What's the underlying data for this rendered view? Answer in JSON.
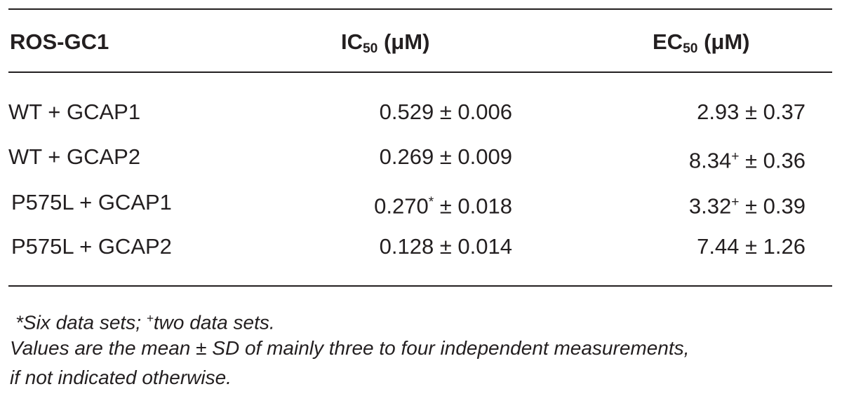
{
  "table": {
    "header": [
      {
        "text": "ROS-GC1"
      },
      {
        "text": "IC",
        "sub": "50",
        "after": " (μM)"
      },
      {
        "text": "EC",
        "sub": "50",
        "after": " (μM)"
      }
    ],
    "rows": [
      [
        {
          "text": "WT + GCAP1"
        },
        {
          "text": "0.529 ± 0.006"
        },
        {
          "text": "2.93 ± 0.37"
        }
      ],
      [
        {
          "text": "WT + GCAP2"
        },
        {
          "text": "0.269 ± 0.009"
        },
        {
          "text": "8.34",
          "sup": "+",
          "after": " ± 0.36"
        }
      ],
      [
        {
          "text": "P575L + GCAP1"
        },
        {
          "text": "0.270",
          "sup": "*",
          "after": " ± 0.018"
        },
        {
          "text": "3.32",
          "sup": "+",
          "after": " ± 0.39"
        }
      ],
      [
        {
          "text": "P575L + GCAP2"
        },
        {
          "text": "0.128 ± 0.014"
        },
        {
          "text": "7.44 ± 1.26"
        }
      ]
    ]
  },
  "footnotes": [
    {
      "text": "*Six data sets; ",
      "sup": "+",
      "after": "two data sets."
    },
    {
      "text": "Values are the mean ± SD of mainly three to four independent measurements,"
    },
    {
      "text": "if not indicated otherwise."
    }
  ]
}
